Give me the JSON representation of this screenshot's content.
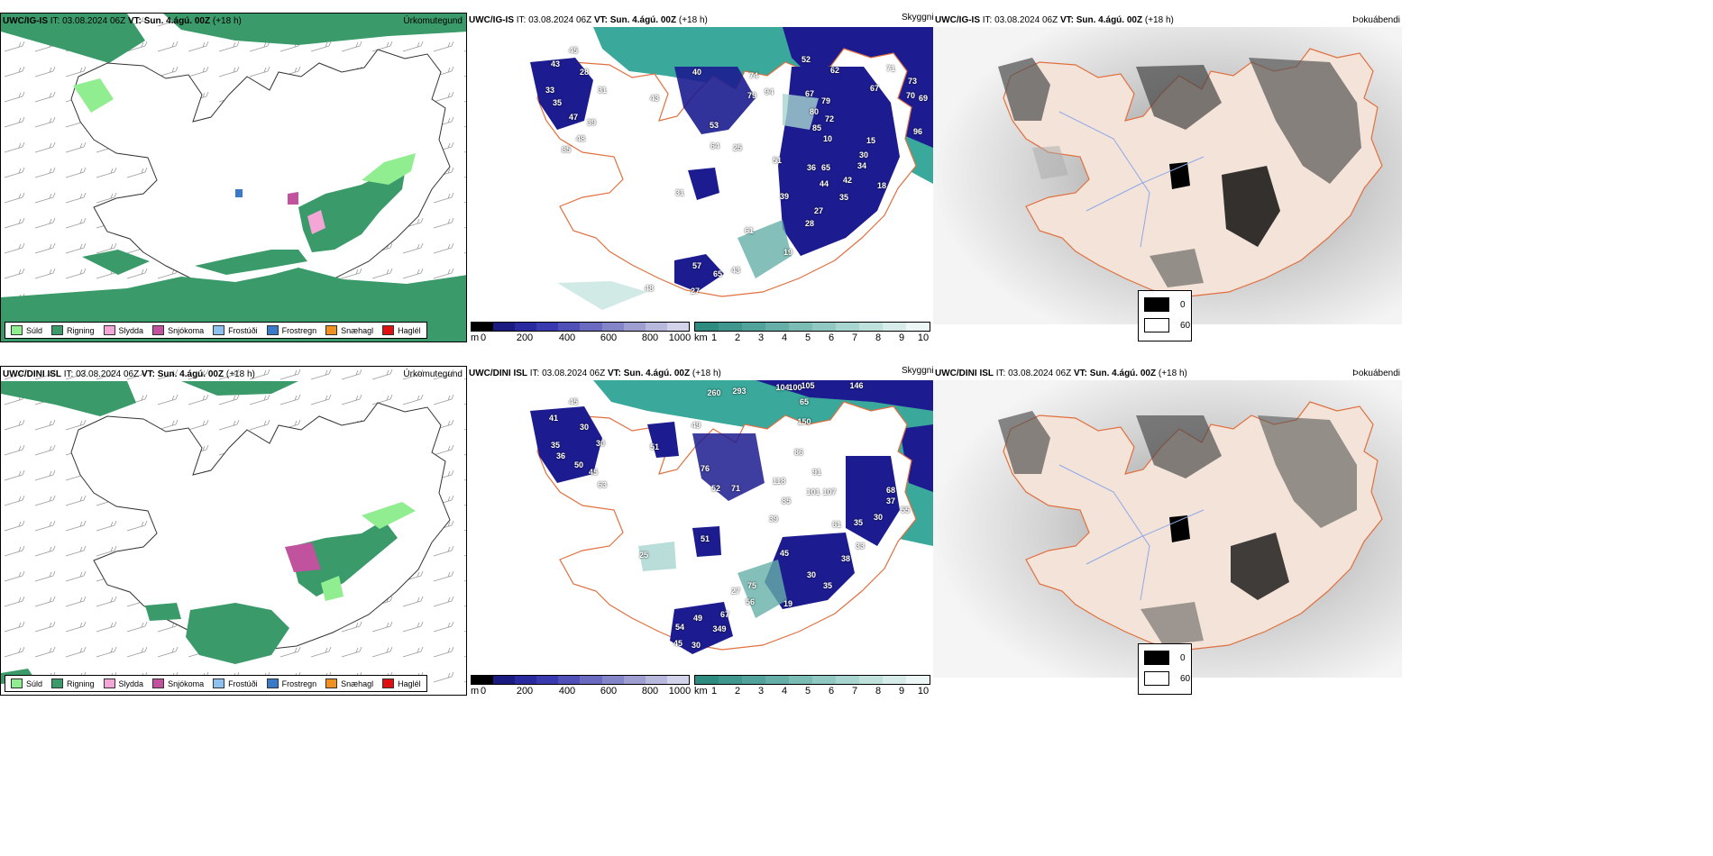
{
  "rows": [
    {
      "id": "ig",
      "precip": {
        "title_model": "UWC/IG-IS",
        "title_it": " IT: 03.08.2024 06Z ",
        "title_vt": "VT: Sun. 4.ágú. 00Z",
        "title_lead": " (+18 h)",
        "type_label": "Úrkomutegund"
      },
      "visibility": {
        "title_model": "UWC/IG-IS",
        "title_it": " IT: 03.08.2024 06Z ",
        "title_vt": "VT: Sun. 4.ágú. 00Z",
        "title_lead": " (+18 h)",
        "type_label": "Skyggni",
        "labels": [
          "45",
          "43",
          "28",
          "33",
          "35",
          "31",
          "47",
          "39",
          "48",
          "85",
          "40",
          "43",
          "53",
          "64",
          "25",
          "74",
          "79",
          "94",
          "52",
          "62",
          "71",
          "73",
          "67",
          "70",
          "69",
          "67",
          "79",
          "80",
          "72",
          "85",
          "96",
          "51",
          "36",
          "65",
          "42",
          "44",
          "35",
          "27",
          "28",
          "39",
          "61",
          "57",
          "27",
          "43",
          "19",
          "48",
          "18",
          "10",
          "15",
          "30",
          "34",
          "31",
          "65"
        ]
      },
      "fog": {
        "title_model": "UWC/IG-IS",
        "title_it": " IT: 03.08.2024 06Z ",
        "title_vt": "VT: Sun. 4.ágú. 00Z",
        "title_lead": " (+18 h)",
        "type_label": "Þokuábendi"
      }
    },
    {
      "id": "dini",
      "precip": {
        "title_model": "UWC/DINI ISL",
        "title_it": " IT: 03.08.2024 06Z ",
        "title_vt": "VT: Sun. 4.ágú. 00Z",
        "title_lead": " (+18 h)",
        "type_label": "Úrkomutegund"
      },
      "visibility": {
        "title_model": "UWC/DINI ISL",
        "title_it": " IT: 03.08.2024 06Z ",
        "title_vt": "VT: Sun. 4.ágú. 00Z",
        "title_lead": " (+18 h)",
        "type_label": "Skyggni",
        "labels": [
          "45",
          "41",
          "30",
          "35",
          "36",
          "30",
          "50",
          "45",
          "63",
          "51",
          "49",
          "76",
          "52",
          "71",
          "260",
          "293",
          "104",
          "100",
          "105",
          "146",
          "65",
          "150",
          "86",
          "91",
          "101",
          "107",
          "118",
          "85",
          "39",
          "61",
          "35",
          "30",
          "37",
          "68",
          "55",
          "45",
          "30",
          "35",
          "38",
          "33",
          "27",
          "75",
          "56",
          "67",
          "49",
          "54",
          "45",
          "30",
          "349",
          "19",
          "51",
          "25"
        ]
      },
      "fog": {
        "title_model": "UWC/DINI ISL",
        "title_it": " IT: 03.08.2024 06Z ",
        "title_vt": "VT: Sun. 4.ágú. 00Z",
        "title_lead": " (+18 h)",
        "type_label": "Þokuábendi"
      }
    }
  ],
  "precip_legend": [
    {
      "label": "Súld",
      "color": "#90ee90"
    },
    {
      "label": "Rigning",
      "color": "#3a9a6a"
    },
    {
      "label": "Slydda",
      "color": "#f4a6d7"
    },
    {
      "label": "Snjókoma",
      "color": "#c0529e"
    },
    {
      "label": "Frostúði",
      "color": "#8ec1f0"
    },
    {
      "label": "Frostregn",
      "color": "#3a78c8"
    },
    {
      "label": "Snæhagl",
      "color": "#f09020"
    },
    {
      "label": "Haglél",
      "color": "#e01010"
    }
  ],
  "height_scale": {
    "unit": "m",
    "ticks": [
      "0",
      "200",
      "400",
      "600",
      "800",
      "1000"
    ],
    "colors": [
      "#000000",
      "#1a1a80",
      "#2a2aa0",
      "#3a3ab0",
      "#5050b8",
      "#6a6ac0",
      "#8484c8",
      "#9e9ed0",
      "#b8b8dc",
      "#d2d2ea"
    ]
  },
  "visibility_scale": {
    "unit": "km",
    "ticks": [
      "1",
      "2",
      "3",
      "4",
      "5",
      "6",
      "7",
      "8",
      "9",
      "10"
    ],
    "colors": [
      "#2e8b7f",
      "#3f9790",
      "#52a39c",
      "#66afa8",
      "#7bbcb5",
      "#91c8c2",
      "#a8d5cf",
      "#bee1dc",
      "#d5ece9",
      "#ecf7f5"
    ]
  },
  "fog_legend": {
    "items": [
      {
        "label": "0",
        "color": "#000000"
      },
      {
        "label": "60",
        "color": "#ffffff"
      }
    ]
  },
  "colors": {
    "land_fog": "#f3e3d8",
    "road": "#e07040",
    "river": "#8fa8e8",
    "vis_sea": "#3aa89a",
    "vis_low": "#1c1c90"
  }
}
